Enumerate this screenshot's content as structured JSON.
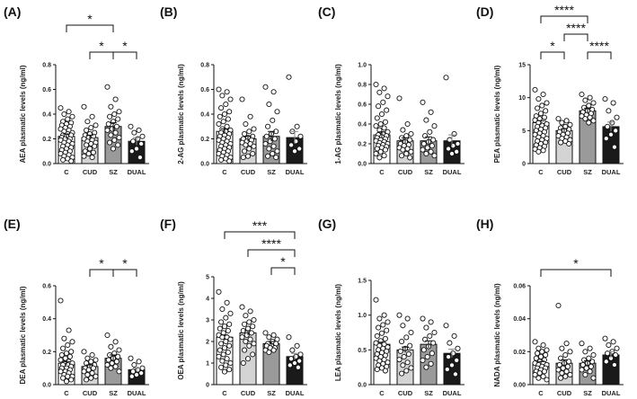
{
  "chart_data": [
    {
      "type": "bar",
      "panel": "(A)",
      "ylabel": "AEA plasmatic levels  (ng/ml)",
      "categories": [
        "C",
        "CUD",
        "SZ",
        "DUAL"
      ],
      "values": [
        0.22,
        0.21,
        0.3,
        0.18
      ],
      "errors": [
        0.02,
        0.02,
        0.03,
        0.03
      ],
      "ylim": [
        0,
        0.8
      ],
      "yticks": [
        "0.0",
        "0.2",
        "0.4",
        "0.6",
        "0.8"
      ],
      "points": [
        [
          0.45,
          0.42,
          0.4,
          0.38,
          0.36,
          0.34,
          0.33,
          0.32,
          0.31,
          0.3,
          0.29,
          0.28,
          0.27,
          0.26,
          0.25,
          0.24,
          0.23,
          0.23,
          0.22,
          0.21,
          0.2,
          0.2,
          0.19,
          0.18,
          0.17,
          0.16,
          0.15,
          0.14,
          0.13,
          0.12,
          0.11,
          0.1,
          0.09,
          0.08,
          0.07,
          0.06,
          0.05,
          0.04,
          0.03,
          0.02
        ],
        [
          0.46,
          0.38,
          0.34,
          0.31,
          0.29,
          0.27,
          0.25,
          0.24,
          0.23,
          0.22,
          0.21,
          0.2,
          0.19,
          0.18,
          0.17,
          0.16,
          0.15,
          0.14,
          0.12,
          0.1,
          0.09,
          0.08,
          0.06,
          0.05
        ],
        [
          0.62,
          0.52,
          0.46,
          0.42,
          0.4,
          0.38,
          0.36,
          0.34,
          0.32,
          0.3,
          0.28,
          0.27,
          0.25,
          0.23,
          0.21,
          0.19,
          0.17,
          0.15,
          0.12
        ],
        [
          0.3,
          0.27,
          0.25,
          0.22,
          0.2,
          0.18,
          0.16,
          0.12,
          0.1,
          0.05
        ]
      ],
      "significance": [
        {
          "from": 0,
          "to": 2,
          "label": "*"
        },
        {
          "from": 1,
          "to": 2,
          "label": "*"
        },
        {
          "from": 2,
          "to": 3,
          "label": "*"
        }
      ]
    },
    {
      "type": "bar",
      "panel": "(B)",
      "ylabel": "2-AG plasmatic levels  (ng/ml)",
      "categories": [
        "C",
        "CUD",
        "SZ",
        "DUAL"
      ],
      "values": [
        0.26,
        0.2,
        0.22,
        0.21
      ],
      "errors": [
        0.02,
        0.02,
        0.04,
        0.05
      ],
      "ylim": [
        0,
        0.8
      ],
      "yticks": [
        "0.0",
        "0.2",
        "0.4",
        "0.6",
        "0.8"
      ],
      "points": [
        [
          0.6,
          0.58,
          0.55,
          0.52,
          0.48,
          0.45,
          0.42,
          0.4,
          0.38,
          0.36,
          0.34,
          0.32,
          0.3,
          0.28,
          0.27,
          0.26,
          0.25,
          0.24,
          0.23,
          0.22,
          0.21,
          0.2,
          0.19,
          0.18,
          0.17,
          0.16,
          0.15,
          0.14,
          0.13,
          0.12,
          0.11,
          0.1,
          0.09,
          0.08,
          0.07,
          0.06,
          0.05,
          0.04,
          0.03,
          0.02
        ],
        [
          0.52,
          0.38,
          0.32,
          0.28,
          0.26,
          0.24,
          0.22,
          0.21,
          0.2,
          0.19,
          0.18,
          0.17,
          0.16,
          0.15,
          0.14,
          0.12,
          0.1,
          0.08,
          0.06,
          0.05
        ],
        [
          0.62,
          0.58,
          0.48,
          0.42,
          0.35,
          0.3,
          0.26,
          0.24,
          0.22,
          0.2,
          0.18,
          0.16,
          0.14,
          0.12,
          0.1,
          0.08,
          0.06,
          0.05
        ],
        [
          0.7,
          0.3,
          0.26,
          0.22,
          0.18,
          0.15,
          0.12,
          0.1
        ]
      ],
      "significance": []
    },
    {
      "type": "bar",
      "panel": "(C)",
      "ylabel": "1-AG plasmatic levels  (ng/ml)",
      "categories": [
        "C",
        "CUD",
        "SZ",
        "DUAL"
      ],
      "values": [
        0.29,
        0.23,
        0.23,
        0.23
      ],
      "errors": [
        0.03,
        0.03,
        0.04,
        0.06
      ],
      "ylim": [
        0,
        1.0
      ],
      "yticks": [
        "0.0",
        "0.2",
        "0.4",
        "0.6",
        "0.8",
        "1.0"
      ],
      "points": [
        [
          0.8,
          0.76,
          0.72,
          0.68,
          0.62,
          0.58,
          0.54,
          0.5,
          0.46,
          0.42,
          0.4,
          0.38,
          0.36,
          0.34,
          0.32,
          0.3,
          0.29,
          0.28,
          0.27,
          0.26,
          0.25,
          0.24,
          0.23,
          0.22,
          0.21,
          0.2,
          0.19,
          0.18,
          0.17,
          0.16,
          0.15,
          0.14,
          0.12,
          0.1,
          0.08,
          0.06
        ],
        [
          0.66,
          0.4,
          0.34,
          0.3,
          0.28,
          0.26,
          0.24,
          0.22,
          0.2,
          0.19,
          0.18,
          0.16,
          0.15,
          0.14,
          0.12,
          0.1,
          0.08,
          0.06
        ],
        [
          0.62,
          0.52,
          0.44,
          0.38,
          0.32,
          0.28,
          0.24,
          0.22,
          0.2,
          0.18,
          0.16,
          0.14,
          0.12,
          0.1,
          0.08
        ],
        [
          0.87,
          0.3,
          0.24,
          0.2,
          0.18,
          0.15,
          0.12,
          0.1
        ]
      ],
      "significance": []
    },
    {
      "type": "bar",
      "panel": "(D)",
      "ylabel": "PEA plasmatic levels  (ng/ml)",
      "categories": [
        "C",
        "CUD",
        "SZ",
        "DUAL"
      ],
      "values": [
        6.2,
        5.0,
        8.0,
        5.6
      ],
      "errors": [
        0.3,
        0.3,
        0.4,
        0.7
      ],
      "ylim": [
        0,
        15
      ],
      "yticks": [
        "0",
        "5",
        "10",
        "15"
      ],
      "points": [
        [
          11.2,
          10.5,
          9.8,
          9.2,
          8.8,
          8.4,
          8.0,
          7.6,
          7.2,
          7.0,
          6.8,
          6.6,
          6.4,
          6.2,
          6.0,
          5.8,
          5.6,
          5.4,
          5.2,
          5.0,
          4.8,
          4.6,
          4.4,
          4.2,
          4.0,
          3.8,
          3.6,
          3.4,
          3.2,
          3.0,
          2.8,
          2.6,
          2.4,
          2.2,
          2.0,
          1.8
        ],
        [
          6.8,
          6.5,
          6.2,
          5.9,
          5.6,
          5.4,
          5.2,
          5.0,
          4.8,
          4.6,
          4.4,
          4.2,
          4.0,
          3.8,
          3.6,
          3.4,
          3.2,
          3.0
        ],
        [
          10.5,
          10.0,
          9.6,
          9.2,
          8.8,
          8.5,
          8.2,
          8.0,
          7.8,
          7.6,
          7.4,
          7.2,
          7.0,
          6.8,
          6.5,
          6.2
        ],
        [
          9.8,
          9.2,
          8.0,
          7.0,
          6.2,
          5.6,
          5.0,
          4.4,
          3.8,
          2.5
        ]
      ],
      "significance": [
        {
          "from": 0,
          "to": 2,
          "label": "****"
        },
        {
          "from": 1,
          "to": 2,
          "label": "****"
        },
        {
          "from": 0,
          "to": 1,
          "label": "*"
        },
        {
          "from": 2,
          "to": 3,
          "label": "****"
        }
      ]
    },
    {
      "type": "bar",
      "panel": "(E)",
      "ylabel": "DEA plasmatic levels  (ng/ml)",
      "categories": [
        "C",
        "CUD",
        "SZ",
        "DUAL"
      ],
      "values": [
        0.13,
        0.11,
        0.16,
        0.09
      ],
      "errors": [
        0.01,
        0.01,
        0.02,
        0.01
      ],
      "ylim": [
        0,
        0.6
      ],
      "yticks": [
        "0.0",
        "0.2",
        "0.4",
        "0.6"
      ],
      "points": [
        [
          0.51,
          0.33,
          0.28,
          0.26,
          0.24,
          0.22,
          0.2,
          0.19,
          0.18,
          0.17,
          0.16,
          0.15,
          0.14,
          0.13,
          0.13,
          0.12,
          0.12,
          0.11,
          0.1,
          0.1,
          0.09,
          0.08,
          0.08,
          0.07,
          0.06,
          0.05,
          0.05,
          0.04,
          0.03,
          0.02
        ],
        [
          0.2,
          0.18,
          0.16,
          0.15,
          0.14,
          0.13,
          0.12,
          0.11,
          0.1,
          0.1,
          0.09,
          0.08,
          0.07,
          0.06,
          0.05,
          0.04,
          0.03
        ],
        [
          0.3,
          0.26,
          0.23,
          0.21,
          0.19,
          0.18,
          0.17,
          0.16,
          0.15,
          0.14,
          0.13,
          0.12,
          0.11,
          0.1,
          0.08
        ],
        [
          0.16,
          0.14,
          0.12,
          0.1,
          0.09,
          0.08,
          0.07,
          0.06,
          0.05
        ]
      ],
      "significance": [
        {
          "from": 1,
          "to": 2,
          "label": "*"
        },
        {
          "from": 2,
          "to": 3,
          "label": "*"
        }
      ]
    },
    {
      "type": "bar",
      "panel": "(F)",
      "ylabel": "OEA plasmatic levels  (ng/ml)",
      "categories": [
        "C",
        "CUD",
        "SZ",
        "DUAL"
      ],
      "values": [
        2.2,
        2.4,
        1.9,
        1.3
      ],
      "errors": [
        0.1,
        0.1,
        0.1,
        0.15
      ],
      "ylim": [
        0,
        5
      ],
      "yticks": [
        "0",
        "1",
        "2",
        "3",
        "4",
        "5"
      ],
      "points": [
        [
          4.3,
          3.8,
          3.5,
          3.3,
          3.1,
          2.9,
          2.8,
          2.7,
          2.6,
          2.5,
          2.4,
          2.3,
          2.2,
          2.2,
          2.1,
          2.0,
          1.9,
          1.8,
          1.7,
          1.6,
          1.5,
          1.4,
          1.3,
          1.2,
          1.1,
          1.0,
          0.9,
          0.8,
          0.7,
          0.6
        ],
        [
          3.6,
          3.4,
          3.2,
          3.0,
          2.9,
          2.8,
          2.7,
          2.6,
          2.5,
          2.4,
          2.3,
          2.2,
          2.1,
          2.0,
          1.9,
          1.8,
          1.6,
          1.4,
          1.2,
          1.0
        ],
        [
          2.4,
          2.3,
          2.2,
          2.1,
          2.0,
          1.9,
          1.9,
          1.8,
          1.8,
          1.7,
          1.7,
          1.6,
          1.6,
          1.5
        ],
        [
          2.2,
          1.8,
          1.6,
          1.4,
          1.3,
          1.2,
          1.1,
          1.0,
          0.9,
          0.8
        ]
      ],
      "significance": [
        {
          "from": 0,
          "to": 3,
          "label": "***"
        },
        {
          "from": 1,
          "to": 3,
          "label": "****"
        },
        {
          "from": 2,
          "to": 3,
          "label": "*"
        }
      ]
    },
    {
      "type": "bar",
      "panel": "(G)",
      "ylabel": "LEA plasmatic levels  (ng/ml)",
      "categories": [
        "C",
        "CUD",
        "SZ",
        "DUAL"
      ],
      "values": [
        0.58,
        0.5,
        0.58,
        0.45
      ],
      "errors": [
        0.03,
        0.04,
        0.05,
        0.06
      ],
      "ylim": [
        0,
        1.5
      ],
      "yticks": [
        "0.0",
        "0.5",
        "1.0",
        "1.5"
      ],
      "points": [
        [
          1.22,
          1.0,
          0.95,
          0.9,
          0.86,
          0.82,
          0.78,
          0.74,
          0.7,
          0.66,
          0.63,
          0.6,
          0.58,
          0.56,
          0.54,
          0.52,
          0.5,
          0.48,
          0.46,
          0.44,
          0.42,
          0.4,
          0.38,
          0.36,
          0.34,
          0.32,
          0.3,
          0.28,
          0.26,
          0.24,
          0.22,
          0.2
        ],
        [
          1.0,
          0.95,
          0.85,
          0.75,
          0.68,
          0.62,
          0.56,
          0.52,
          0.48,
          0.44,
          0.4,
          0.36,
          0.32,
          0.28,
          0.24,
          0.2,
          0.16
        ],
        [
          0.95,
          0.9,
          0.82,
          0.75,
          0.7,
          0.65,
          0.6,
          0.55,
          0.5,
          0.45,
          0.4,
          0.35,
          0.3,
          0.25
        ],
        [
          0.85,
          0.7,
          0.6,
          0.52,
          0.45,
          0.4,
          0.35,
          0.28,
          0.22,
          0.15
        ]
      ],
      "significance": []
    },
    {
      "type": "bar",
      "panel": "(H)",
      "ylabel": "NADA plasmatic levels  (ng/ml)",
      "categories": [
        "C",
        "CUD",
        "SZ",
        "DUAL"
      ],
      "values": [
        0.013,
        0.013,
        0.013,
        0.018
      ],
      "errors": [
        0.001,
        0.002,
        0.0015,
        0.002
      ],
      "ylim": [
        0,
        0.06
      ],
      "yticks": [
        "0.00",
        "0.02",
        "0.04",
        "0.06"
      ],
      "points": [
        [
          0.026,
          0.024,
          0.022,
          0.021,
          0.02,
          0.019,
          0.018,
          0.017,
          0.016,
          0.015,
          0.014,
          0.013,
          0.013,
          0.012,
          0.012,
          0.011,
          0.01,
          0.01,
          0.009,
          0.008,
          0.008,
          0.007,
          0.006,
          0.005,
          0.004,
          0.003
        ],
        [
          0.048,
          0.025,
          0.022,
          0.02,
          0.018,
          0.016,
          0.014,
          0.013,
          0.012,
          0.011,
          0.01,
          0.009,
          0.008,
          0.007,
          0.006,
          0.005,
          0.004
        ],
        [
          0.025,
          0.022,
          0.02,
          0.018,
          0.016,
          0.015,
          0.014,
          0.013,
          0.012,
          0.011,
          0.01,
          0.009,
          0.008,
          0.006,
          0.004
        ],
        [
          0.028,
          0.026,
          0.024,
          0.022,
          0.02,
          0.019,
          0.018,
          0.016,
          0.014,
          0.012
        ]
      ],
      "significance": [
        {
          "from": 0,
          "to": 3,
          "label": "*"
        }
      ]
    }
  ],
  "colors": {
    "bar_fills": [
      "#ffffff",
      "#d4d4d4",
      "#9a9a9a",
      "#1a1a1a"
    ],
    "point_fill": "#ffffff",
    "axis": "#111111"
  }
}
